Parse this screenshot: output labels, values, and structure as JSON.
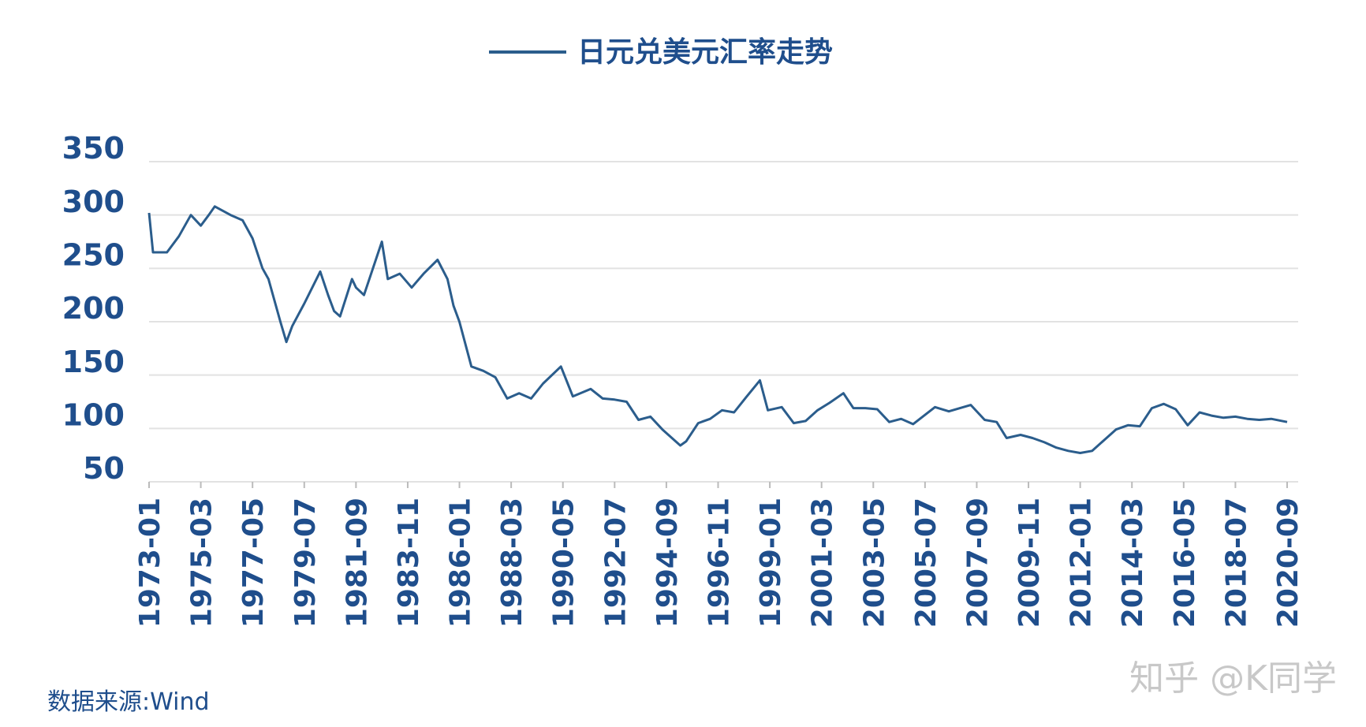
{
  "chart_data": {
    "type": "line",
    "series": [
      {
        "name": "日元兑美元汇率走势",
        "color": "#2b5d8c",
        "values": [
          302,
          265,
          265,
          280,
          300,
          290,
          300,
          308,
          300,
          295,
          278,
          250,
          240,
          200,
          181,
          196,
          217,
          247,
          225,
          210,
          205,
          240,
          232,
          225,
          275,
          240,
          245,
          232,
          245,
          258,
          240,
          215,
          200,
          158,
          154,
          148,
          128,
          133,
          128,
          142,
          158,
          130,
          137,
          128,
          127,
          125,
          108,
          111,
          99,
          84,
          88,
          105,
          109,
          117,
          115,
          129,
          145,
          117,
          120,
          105,
          107,
          117,
          124,
          133,
          119,
          119,
          118,
          106,
          109,
          104,
          120,
          116,
          122,
          108,
          106,
          91,
          94,
          91,
          87,
          82,
          79,
          77,
          79,
          89,
          99,
          103,
          102,
          119,
          123,
          118,
          103,
          115,
          112,
          110,
          111,
          109,
          108,
          109,
          106
        ]
      }
    ],
    "x": [
      "1973-01",
      "1973-03",
      "1973-10",
      "1974-04",
      "1974-10",
      "1975-03",
      "1975-07",
      "1975-10",
      "1976-06",
      "1976-12",
      "1977-05",
      "1977-10",
      "1978-01",
      "1978-07",
      "1978-10",
      "1979-01",
      "1979-07",
      "1980-03",
      "1980-07",
      "1980-10",
      "1981-01",
      "1981-07",
      "1981-09",
      "1982-01",
      "1982-10",
      "1983-01",
      "1983-07",
      "1984-01",
      "1984-07",
      "1985-02",
      "1985-07",
      "1985-10",
      "1986-01",
      "1986-07",
      "1987-01",
      "1987-07",
      "1988-01",
      "1988-07",
      "1989-01",
      "1989-07",
      "1990-04",
      "1990-10",
      "1991-07",
      "1992-01",
      "1992-07",
      "1993-01",
      "1993-07",
      "1994-01",
      "1994-07",
      "1995-04",
      "1995-07",
      "1996-01",
      "1996-07",
      "1997-01",
      "1997-07",
      "1998-01",
      "1998-08",
      "1998-12",
      "1999-07",
      "2000-01",
      "2000-07",
      "2001-01",
      "2001-07",
      "2002-02",
      "2002-07",
      "2003-01",
      "2003-07",
      "2004-01",
      "2004-07",
      "2005-01",
      "2005-12",
      "2006-07",
      "2007-06",
      "2008-01",
      "2008-07",
      "2008-12",
      "2009-07",
      "2010-01",
      "2010-07",
      "2011-01",
      "2011-07",
      "2012-01",
      "2012-07",
      "2013-01",
      "2013-07",
      "2014-01",
      "2014-07",
      "2015-01",
      "2015-07",
      "2016-01",
      "2016-07",
      "2017-01",
      "2017-07",
      "2018-01",
      "2018-07",
      "2019-01",
      "2019-07",
      "2020-01",
      "2020-09"
    ],
    "xticks": [
      "1973-01",
      "1975-03",
      "1977-05",
      "1979-07",
      "1981-09",
      "1983-11",
      "1986-01",
      "1988-03",
      "1990-05",
      "1992-07",
      "1994-09",
      "1996-11",
      "1999-01",
      "2001-03",
      "2003-05",
      "2005-07",
      "2007-09",
      "2009-11",
      "2012-01",
      "2014-03",
      "2016-05",
      "2018-07",
      "2020-09"
    ],
    "ylim": [
      50,
      350
    ],
    "yticks": [
      50,
      100,
      150,
      200,
      250,
      300,
      350
    ],
    "grid": true,
    "source": "数据来源:Wind",
    "watermark": "知乎 @K同学"
  }
}
